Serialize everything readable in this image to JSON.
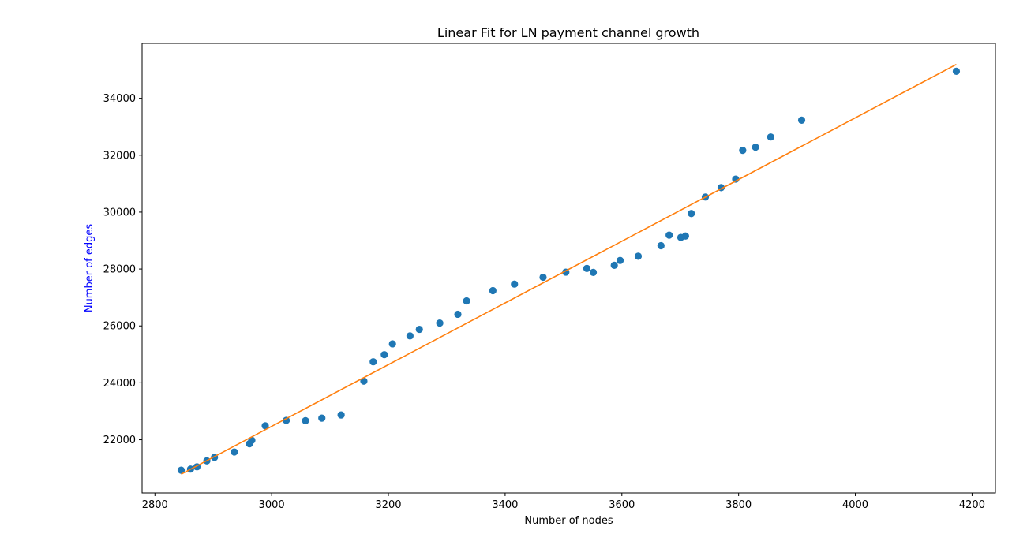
{
  "chart_data": {
    "type": "scatter",
    "title": "Linear Fit for LN payment channel growth",
    "xlabel": "Number of nodes",
    "ylabel": "Number of edges",
    "ylabel_color": "#0000ff",
    "xlim": [
      2778,
      4240
    ],
    "ylim": [
      20130,
      35930
    ],
    "xticks": [
      2800,
      3000,
      3200,
      3400,
      3600,
      3800,
      4000,
      4200
    ],
    "yticks": [
      22000,
      24000,
      26000,
      28000,
      30000,
      32000,
      34000
    ],
    "grid": false,
    "series": [
      {
        "kind": "scatter",
        "color": "#1f77b4",
        "points": [
          [
            2845,
            20930
          ],
          [
            2861,
            20970
          ],
          [
            2872,
            21050
          ],
          [
            2889,
            21260
          ],
          [
            2902,
            21380
          ],
          [
            2936,
            21570
          ],
          [
            2962,
            21860
          ],
          [
            2966,
            21980
          ],
          [
            2989,
            22490
          ],
          [
            3025,
            22680
          ],
          [
            3058,
            22670
          ],
          [
            3086,
            22760
          ],
          [
            3119,
            22870
          ],
          [
            3158,
            24060
          ],
          [
            3174,
            24740
          ],
          [
            3193,
            24990
          ],
          [
            3207,
            25370
          ],
          [
            3237,
            25650
          ],
          [
            3253,
            25880
          ],
          [
            3288,
            26100
          ],
          [
            3319,
            26410
          ],
          [
            3334,
            26880
          ],
          [
            3379,
            27240
          ],
          [
            3416,
            27470
          ],
          [
            3465,
            27710
          ],
          [
            3504,
            27890
          ],
          [
            3540,
            28020
          ],
          [
            3551,
            27880
          ],
          [
            3587,
            28130
          ],
          [
            3597,
            28300
          ],
          [
            3628,
            28450
          ],
          [
            3667,
            28820
          ],
          [
            3681,
            29190
          ],
          [
            3701,
            29110
          ],
          [
            3709,
            29160
          ],
          [
            3719,
            29950
          ],
          [
            3743,
            30530
          ],
          [
            3770,
            30860
          ],
          [
            3795,
            31160
          ],
          [
            3807,
            32170
          ],
          [
            3829,
            32280
          ],
          [
            3855,
            32640
          ],
          [
            3908,
            33230
          ],
          [
            4173,
            34950
          ]
        ]
      },
      {
        "kind": "line",
        "color": "#ff7f0e",
        "points": [
          [
            2845,
            20790
          ],
          [
            4173,
            35190
          ]
        ]
      }
    ]
  }
}
